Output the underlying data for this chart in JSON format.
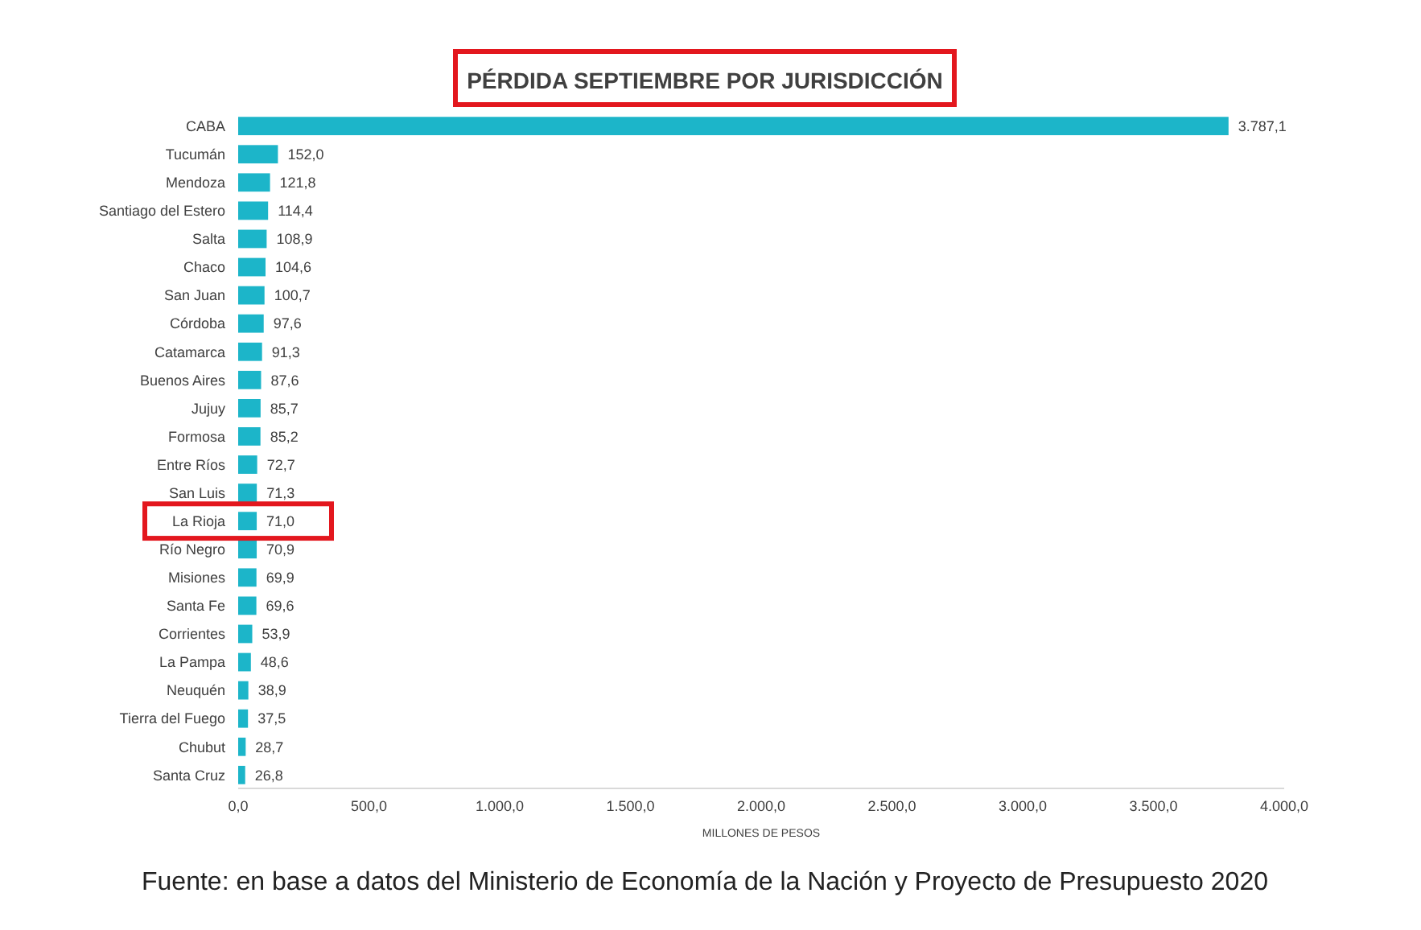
{
  "chart_data": {
    "type": "bar",
    "orientation": "horizontal",
    "title": "PÉRDIDA SEPTIEMBRE POR JURISDICCIÓN",
    "xlabel": "MILLONES DE PESOS",
    "categories": [
      "CABA",
      "Tucumán",
      "Mendoza",
      "Santiago del Estero",
      "Salta",
      "Chaco",
      "San Juan",
      "Córdoba",
      "Catamarca",
      "Buenos Aires",
      "Jujuy",
      "Formosa",
      "Entre Ríos",
      "San Luis",
      "La Rioja",
      "Río Negro",
      "Misiones",
      "Santa Fe",
      "Corrientes",
      "La Pampa",
      "Neuquén",
      "Tierra del Fuego",
      "Chubut",
      "Santa Cruz"
    ],
    "values": [
      3787.1,
      152.0,
      121.8,
      114.4,
      108.9,
      104.6,
      100.7,
      97.6,
      91.3,
      87.6,
      85.7,
      85.2,
      72.7,
      71.3,
      71.0,
      70.9,
      69.9,
      69.6,
      53.9,
      48.6,
      38.9,
      37.5,
      28.7,
      26.8
    ],
    "value_labels": [
      "3.787,1",
      "152,0",
      "121,8",
      "114,4",
      "108,9",
      "104,6",
      "100,7",
      "97,6",
      "91,3",
      "87,6",
      "85,7",
      "85,2",
      "72,7",
      "71,3",
      "71,0",
      "70,9",
      "69,9",
      "69,6",
      "53,9",
      "48,6",
      "38,9",
      "37,5",
      "28,7",
      "26,8"
    ],
    "color": "#1cb5c9",
    "xlim": [
      0,
      4000
    ],
    "xticks": [
      {
        "value": 0,
        "label": "0,0"
      },
      {
        "value": 500,
        "label": "500,0"
      },
      {
        "value": 1000,
        "label": "1.000,0"
      },
      {
        "value": 1500,
        "label": "1.500,0"
      },
      {
        "value": 2000,
        "label": "2.000,0"
      },
      {
        "value": 2500,
        "label": "2.500,0"
      },
      {
        "value": 3000,
        "label": "3.000,0"
      },
      {
        "value": 3500,
        "label": "3.500,0"
      },
      {
        "value": 4000,
        "label": "4.000,0"
      }
    ],
    "annotations": [
      "Fuente: en base a datos del Ministerio de Economía de la Nación y Proyecto de Presupuesto 2020"
    ]
  }
}
